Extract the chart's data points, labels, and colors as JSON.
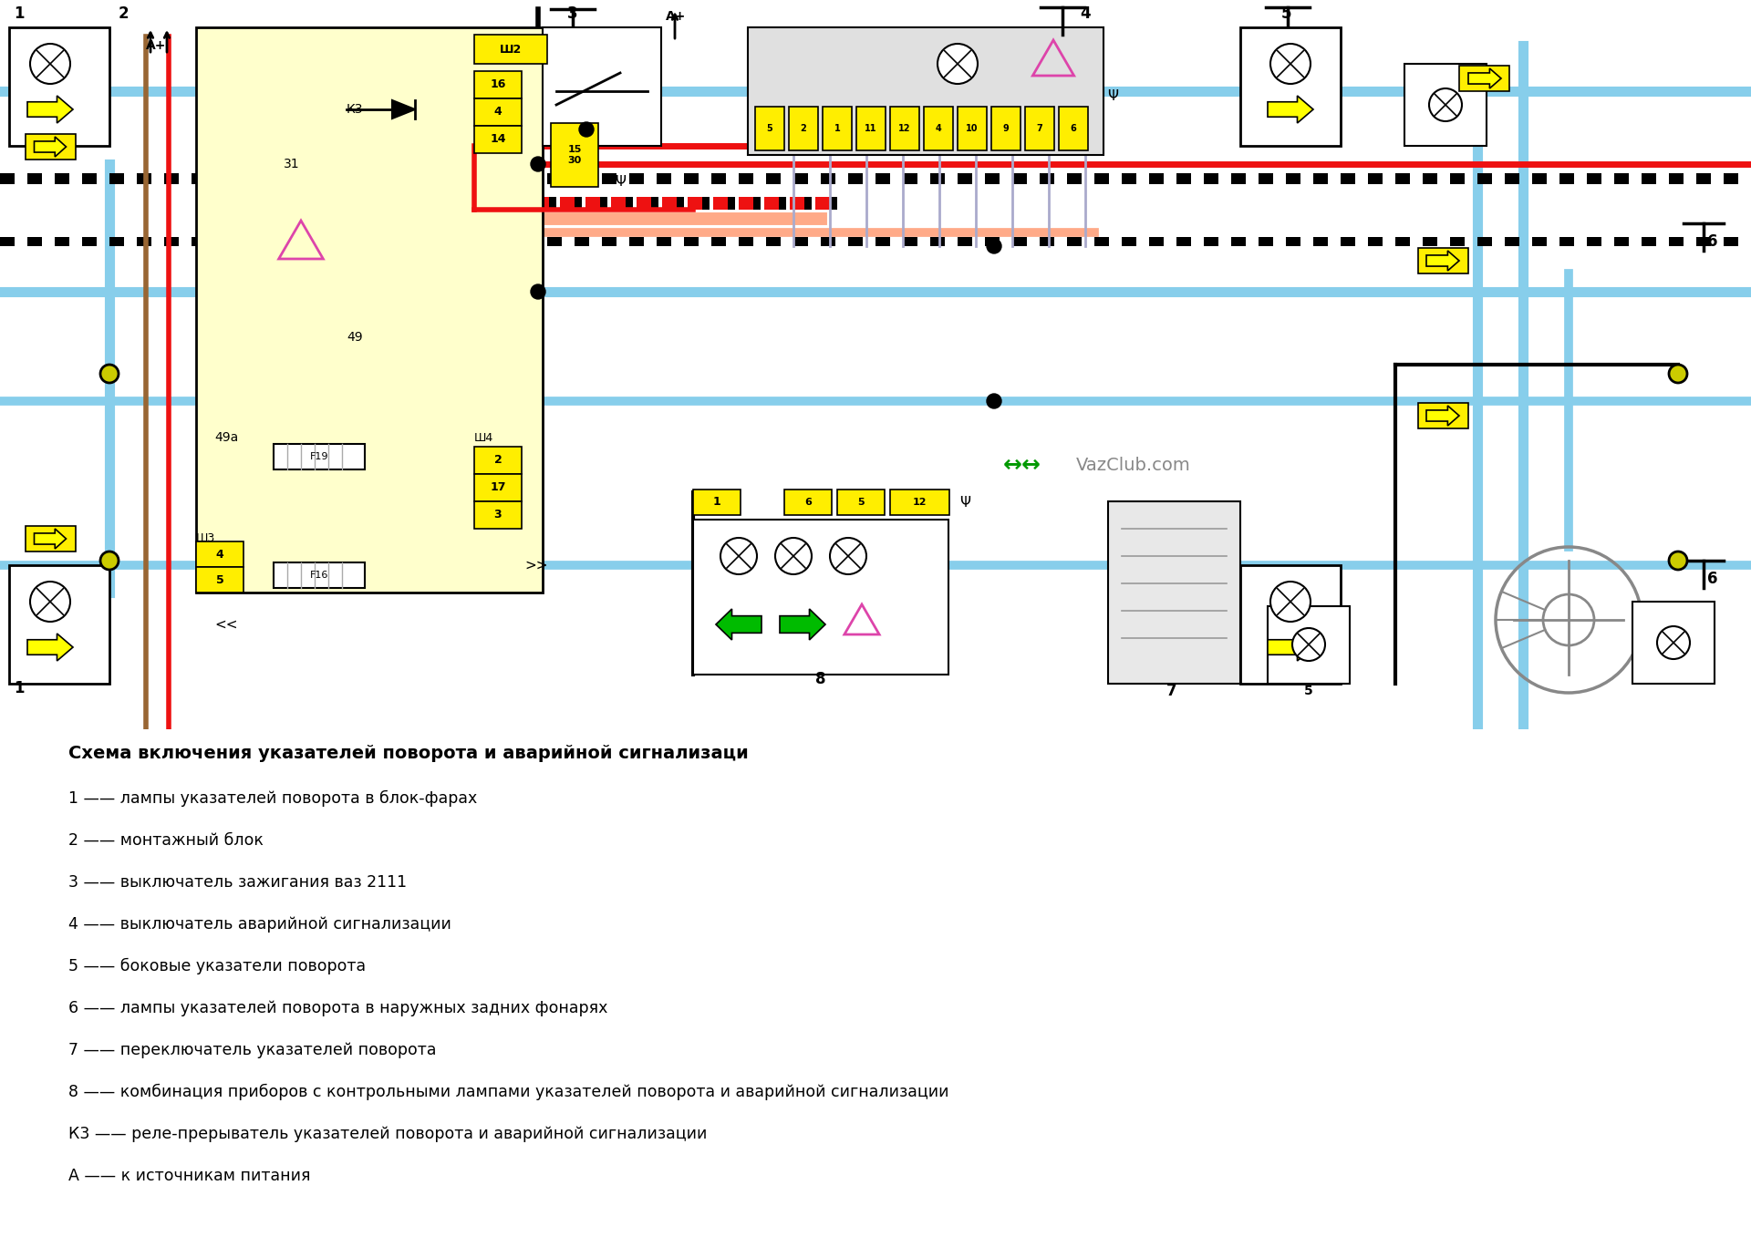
{
  "title": "Схема включения указателей поворота и аварийной сигнализаци",
  "legend_items": [
    "1 —— лампы указателей поворота в блок-фарах",
    "2 —— монтажный блок",
    "3 —— выключатель зажигания ваз 2111",
    "4 —— выключатель аварийной сигнализации",
    "5 —— боковые указатели поворота",
    "6 —— лампы указателей поворота в наружных задних фонарях",
    "7 —— переключатель указателей поворота",
    "8 —— комбинация приборов с контрольными лампами указателей поворота и аварийной сигнализации",
    "К3 —— реле-прерыватель указателей поворота и аварийной сигнализации",
    "А —— к источникам питания"
  ],
  "bg_color": "#ffffff",
  "title_fontsize": 14,
  "legend_fontsize": 12.5,
  "yellow": "#ffff00",
  "light_blue": "#87ceeb",
  "blue": "#6699cc",
  "red": "#ee1111",
  "brown": "#996633",
  "pink_salmon": "#ffaa88",
  "black": "#000000",
  "light_gray": "#cccccc",
  "yellow_bg": "#ffffcc",
  "green": "#00aa00",
  "magenta": "#dd44aa",
  "dark_red_dashed": "#cc0000",
  "connector_yellow": "#ffee00"
}
